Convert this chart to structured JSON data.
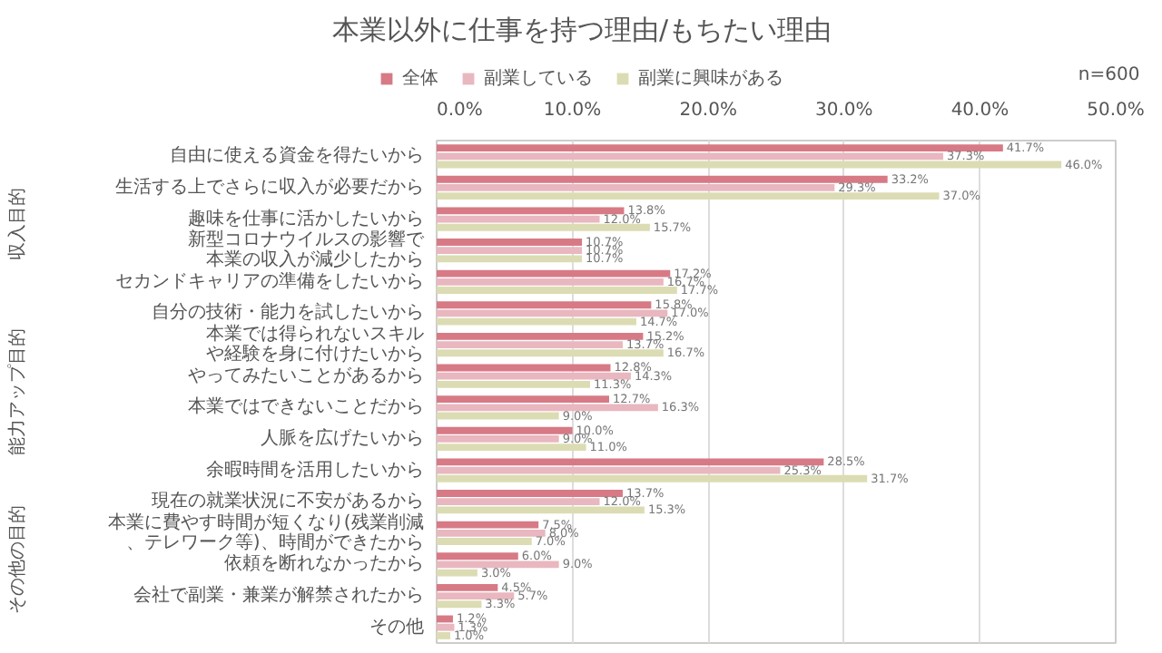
{
  "chart_data": {
    "type": "bar",
    "orientation": "horizontal",
    "title": "本業以外に仕事を持つ理由/もちたい理由",
    "categories": [
      "自由に使える資金を得たいから",
      "生活する上でさらに収入が必要だから",
      "趣味を仕事に活かしたいから",
      "新型コロナウイルスの影響で本業の収入が減少したから",
      "セカンドキャリアの準備をしたいから",
      "自分の技術・能力を試したいから",
      "本業では得られないスキルや経験を身に付けたいから",
      "やってみたいことがあるから",
      "本業ではできないことだから",
      "人脈を広げたいから",
      "余暇時間を活用したいから",
      "現在の就業状況に不安があるから",
      "本業に費やす時間が短くなり(残業削減、テレワーク等)、時間ができたから",
      "依頼を断れなかったから",
      "会社で副業・兼業が解禁されたから",
      "その他"
    ],
    "series": [
      {
        "name": "全体",
        "color": "#d77a86",
        "values": [
          41.7,
          33.2,
          13.8,
          10.7,
          17.2,
          15.8,
          15.2,
          12.8,
          12.7,
          10.0,
          28.5,
          13.7,
          7.5,
          6.0,
          4.5,
          1.2
        ],
        "value_labels": [
          "41.7%",
          "33.2%",
          "13.8%",
          "10.7%",
          "17.2%",
          "15.8%",
          "15.2%",
          "12.8%",
          "12.7%",
          "10.0%",
          "28.5%",
          "13.7%",
          "7.5%",
          "6.0%",
          "4.5%",
          "1.2%"
        ]
      },
      {
        "name": "副業している",
        "color": "#e9b7bf",
        "values": [
          37.3,
          29.3,
          12.0,
          10.7,
          16.7,
          17.0,
          13.7,
          14.3,
          16.3,
          9.0,
          25.3,
          12.0,
          8.0,
          9.0,
          5.7,
          1.3
        ],
        "value_labels": [
          "37.3%",
          "29.3%",
          "12.0%",
          "10.7%",
          "16.7%",
          "17.0%",
          "13.7%",
          "14.3%",
          "16.3%",
          "9.0%",
          "25.3%",
          "12.0%",
          "8.0%",
          "9.0%",
          "5.7%",
          "1.3%"
        ]
      },
      {
        "name": "副業に興味がある",
        "color": "#dcdcb4",
        "values": [
          46.0,
          37.0,
          15.7,
          10.7,
          17.7,
          14.7,
          16.7,
          11.3,
          9.0,
          11.0,
          31.7,
          15.3,
          7.0,
          3.0,
          3.3,
          1.0
        ],
        "value_labels": [
          "46.0%",
          "37.0%",
          "15.7%",
          "10.7%",
          "17.7%",
          "14.7%",
          "16.7%",
          "11.3%",
          "9.0%",
          "11.0%",
          "31.7%",
          "15.3%",
          "7.0%",
          "3.0%",
          "3.3%",
          "1.0%"
        ]
      }
    ],
    "xlim": [
      0,
      50
    ],
    "xticks": [
      {
        "value": 0,
        "label": "0.0%"
      },
      {
        "value": 10,
        "label": "10.0%"
      },
      {
        "value": 20,
        "label": "20.0%"
      },
      {
        "value": 30,
        "label": "30.0%"
      },
      {
        "value": 40,
        "label": "40.0%"
      },
      {
        "value": 50,
        "label": "50.0%"
      }
    ],
    "grid": "x",
    "legend": "top",
    "annotations": [
      "収入目的",
      "能力アップ目的",
      "その他の目的",
      "n=600"
    ]
  }
}
